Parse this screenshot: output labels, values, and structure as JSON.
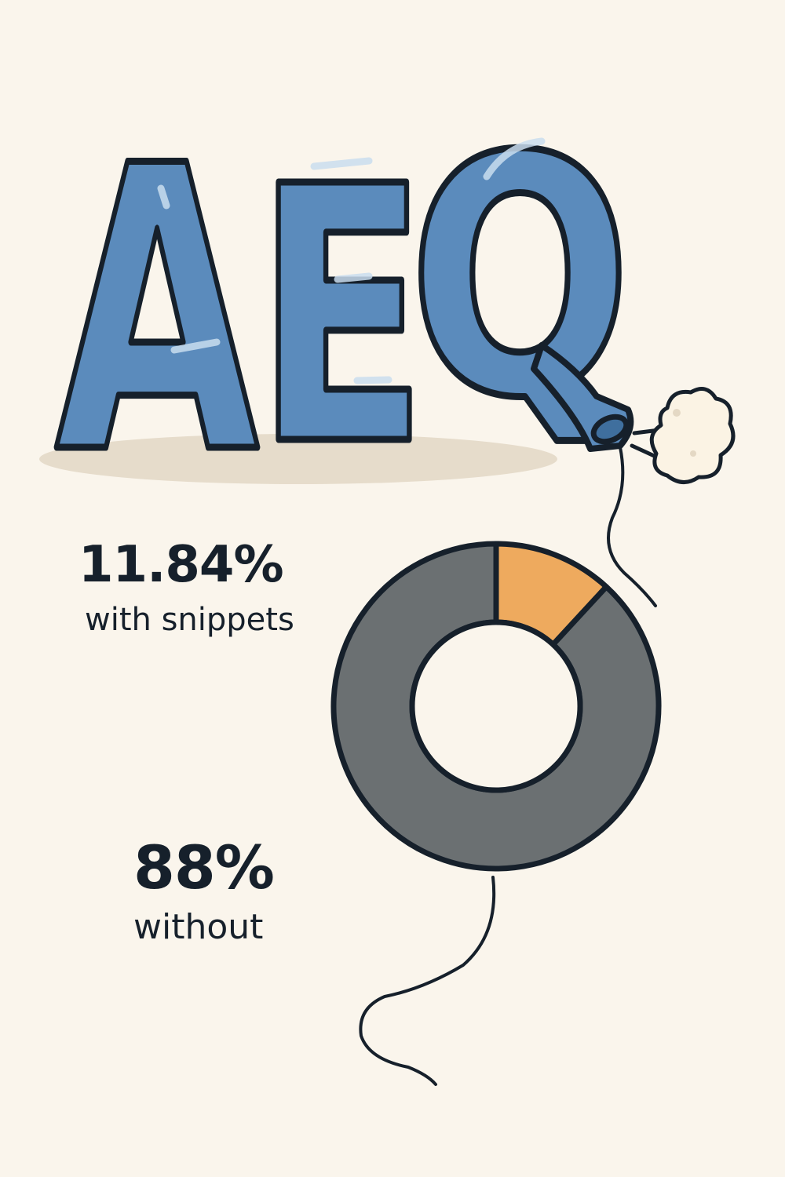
{
  "headline": {
    "text": "AEQ",
    "letters": [
      "A",
      "E",
      "Q"
    ],
    "color": "#5b8bbc",
    "outline": "#16202b"
  },
  "chart_data": {
    "type": "pie",
    "style": "donut",
    "categories": [
      "with snippets",
      "without"
    ],
    "values": [
      11.84,
      88
    ],
    "colors": [
      "#eeaa5e",
      "#6b7072"
    ],
    "title": "",
    "legend": "none"
  },
  "stats": [
    {
      "value": "11.84%",
      "label": "with snippets"
    },
    {
      "value": "88%",
      "label": "without"
    }
  ],
  "colors": {
    "background": "#faf5ec",
    "ink": "#16202b",
    "balloon": "#5b8bbc",
    "highlight": "#eeaa5e",
    "slate": "#6b7072"
  }
}
